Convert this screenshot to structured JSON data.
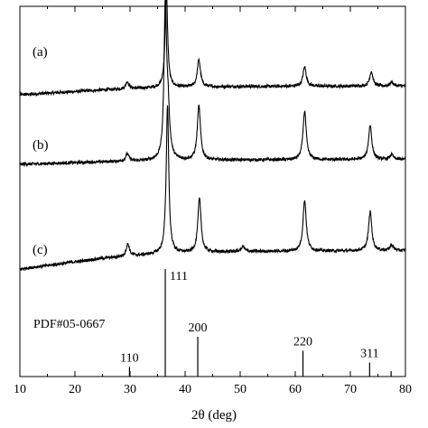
{
  "chart_data": {
    "type": "line",
    "xlabel": "2θ (deg)",
    "ylabel": "",
    "title": "",
    "xlim": [
      10,
      80
    ],
    "xticks": [
      10,
      20,
      30,
      40,
      50,
      60,
      70,
      80
    ],
    "y_ticks_shown": false,
    "grid": false,
    "legend": "none",
    "series": [
      {
        "name": "(a)",
        "baseline": [
          [
            10,
            0.0
          ],
          [
            25,
            0.1
          ],
          [
            36,
            0.15
          ],
          [
            50,
            0.17
          ],
          [
            80,
            0.18
          ]
        ],
        "peaks": [
          {
            "x": 29.5,
            "height": 0.15
          },
          {
            "x": 36.6,
            "height": 1.95
          },
          {
            "x": 42.5,
            "height": 0.55
          },
          {
            "x": 61.7,
            "height": 0.4
          },
          {
            "x": 73.8,
            "height": 0.3
          },
          {
            "x": 77.5,
            "height": 0.08
          }
        ]
      },
      {
        "name": "(b)",
        "baseline": [
          [
            10,
            0.0
          ],
          [
            25,
            0.05
          ],
          [
            36,
            0.08
          ],
          [
            50,
            0.09
          ],
          [
            80,
            0.1
          ]
        ],
        "peaks": [
          {
            "x": 29.5,
            "height": 0.15
          },
          {
            "x": 36.4,
            "height": 3.05
          },
          {
            "x": 36.9,
            "height": 0.9
          },
          {
            "x": 42.5,
            "height": 1.1
          },
          {
            "x": 61.7,
            "height": 1.0
          },
          {
            "x": 73.6,
            "height": 0.7
          },
          {
            "x": 77.5,
            "height": 0.1
          }
        ]
      },
      {
        "name": "(c)",
        "baseline": [
          [
            10,
            0.0
          ],
          [
            25,
            0.22
          ],
          [
            36,
            0.32
          ],
          [
            50,
            0.36
          ],
          [
            80,
            0.38
          ]
        ],
        "peaks": [
          {
            "x": 29.6,
            "height": 0.25
          },
          {
            "x": 36.8,
            "height": 3.05
          },
          {
            "x": 42.6,
            "height": 1.1
          },
          {
            "x": 50.5,
            "height": 0.1
          },
          {
            "x": 61.7,
            "height": 1.05
          },
          {
            "x": 73.6,
            "height": 0.8
          },
          {
            "x": 77.5,
            "height": 0.12
          }
        ]
      }
    ],
    "reference": {
      "label": "PDF#05-0667",
      "lines": [
        {
          "x": 29.9,
          "intensity": 0.09,
          "hkl": "110"
        },
        {
          "x": 36.4,
          "intensity": 1.0,
          "hkl": "111"
        },
        {
          "x": 42.3,
          "intensity": 0.37,
          "hkl": "200"
        },
        {
          "x": 61.4,
          "intensity": 0.24,
          "hkl": "220"
        },
        {
          "x": 73.5,
          "intensity": 0.13,
          "hkl": "311"
        },
        {
          "x": 77.4,
          "intensity": 0.05,
          "hkl": ""
        }
      ]
    }
  }
}
